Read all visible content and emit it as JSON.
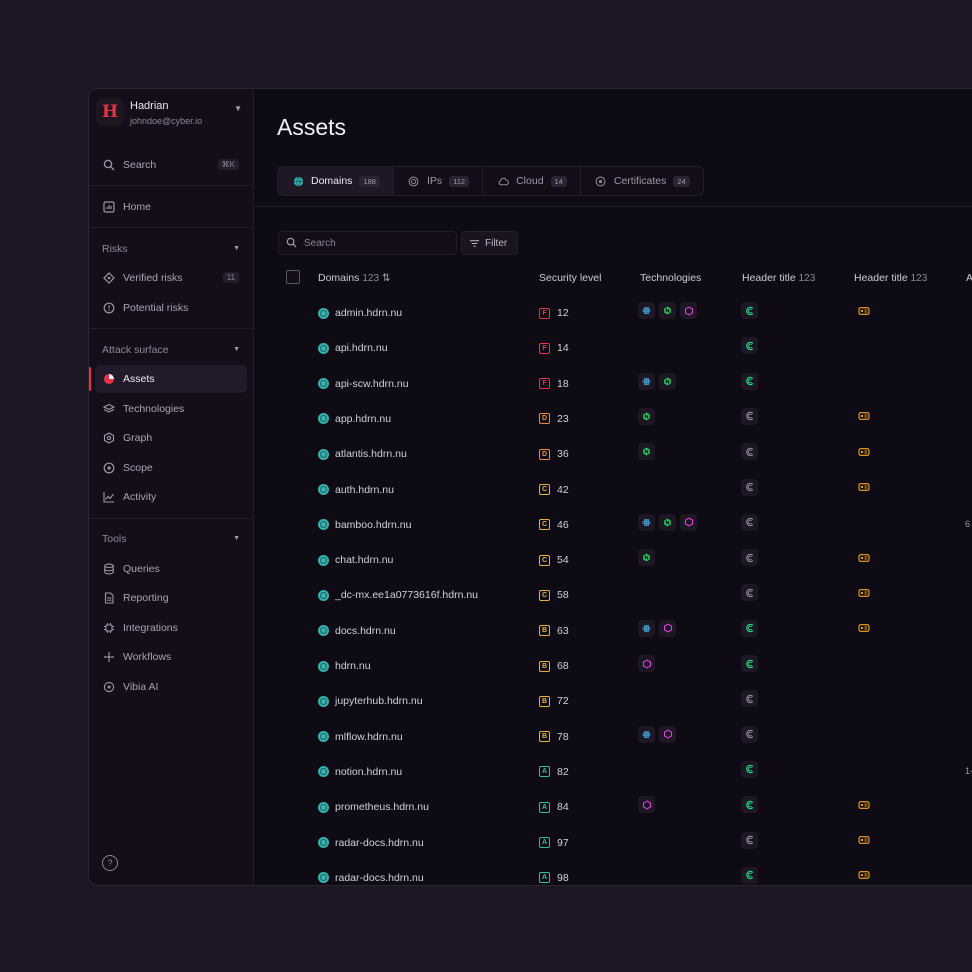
{
  "profile": {
    "name": "Hadrian",
    "email": "johndoe@cyber.io",
    "logo": "H"
  },
  "sidebar": {
    "search_label": "Search",
    "search_shortcut": "⌘K",
    "home": "Home",
    "risks_section": "Risks",
    "verified_risks": "Verified risks",
    "verified_count": "11",
    "potential_risks": "Potential risks",
    "attack_section": "Attack surface",
    "assets": "Assets",
    "technologies": "Technologies",
    "graph": "Graph",
    "scope": "Scope",
    "activity": "Activity",
    "tools_section": "Tools",
    "queries": "Queries",
    "reporting": "Reporting",
    "integrations": "Integrations",
    "workflows": "Workflows",
    "vibia": "Vibia AI",
    "help": "?"
  },
  "page": {
    "title": "Assets"
  },
  "tabs": [
    {
      "label": "Domains",
      "count": "188"
    },
    {
      "label": "IPs",
      "count": "112"
    },
    {
      "label": "Cloud",
      "count": "14"
    },
    {
      "label": "Certificates",
      "count": "24"
    }
  ],
  "toolbar": {
    "search_placeholder": "Search",
    "filter_label": "Filter"
  },
  "table": {
    "headers": {
      "domains": "Domains",
      "domains_count": "123",
      "security": "Security level",
      "technologies": "Technologies",
      "header1": "Header title",
      "header1_count": "123",
      "header2": "Header title",
      "header2_count": "123",
      "extra": "A"
    },
    "rows": [
      {
        "domain": "admin.hdrn.nu",
        "grade": "F",
        "score": "12",
        "tech": [
          "react",
          "nginx",
          "hex"
        ],
        "h1": "on",
        "h2": true,
        "extra": ""
      },
      {
        "domain": "api.hdrn.nu",
        "grade": "F",
        "score": "14",
        "tech": [],
        "h1": "on",
        "h2": false,
        "extra": ""
      },
      {
        "domain": "api-scw.hdrn.nu",
        "grade": "F",
        "score": "18",
        "tech": [
          "react",
          "nginx"
        ],
        "h1": "on",
        "h2": false,
        "extra": ""
      },
      {
        "domain": "app.hdrn.nu",
        "grade": "D",
        "score": "23",
        "tech": [
          "nginx"
        ],
        "h1": "off",
        "h2": true,
        "extra": ""
      },
      {
        "domain": "atlantis.hdrn.nu",
        "grade": "D",
        "score": "36",
        "tech": [
          "nginx"
        ],
        "h1": "off",
        "h2": true,
        "extra": ""
      },
      {
        "domain": "auth.hdrn.nu",
        "grade": "C",
        "score": "42",
        "tech": [],
        "h1": "off",
        "h2": true,
        "extra": ""
      },
      {
        "domain": "bamboo.hdrn.nu",
        "grade": "C",
        "score": "46",
        "tech": [
          "react",
          "nginx",
          "hex"
        ],
        "h1": "off",
        "h2": false,
        "extra": "6"
      },
      {
        "domain": "chat.hdrn.nu",
        "grade": "C",
        "score": "54",
        "tech": [
          "nginx"
        ],
        "h1": "off",
        "h2": true,
        "extra": ""
      },
      {
        "domain": "_dc-mx.ee1a0773616f.hdrn.nu",
        "grade": "C",
        "score": "58",
        "tech": [],
        "h1": "off",
        "h2": true,
        "extra": ""
      },
      {
        "domain": "docs.hdrn.nu",
        "grade": "B",
        "score": "63",
        "tech": [
          "react",
          "hex"
        ],
        "h1": "on",
        "h2": true,
        "extra": ""
      },
      {
        "domain": "hdrn.nu",
        "grade": "B",
        "score": "68",
        "tech": [
          "hex"
        ],
        "h1": "on",
        "h2": false,
        "extra": ""
      },
      {
        "domain": "jupyterhub.hdrn.nu",
        "grade": "B",
        "score": "72",
        "tech": [],
        "h1": "off",
        "h2": false,
        "extra": ""
      },
      {
        "domain": "mlflow.hdrn.nu",
        "grade": "B",
        "score": "78",
        "tech": [
          "react",
          "hex"
        ],
        "h1": "off",
        "h2": false,
        "extra": ""
      },
      {
        "domain": "notion.hdrn.nu",
        "grade": "A",
        "score": "82",
        "tech": [],
        "h1": "on",
        "h2": false,
        "extra": "1-"
      },
      {
        "domain": "prometheus.hdrn.nu",
        "grade": "A",
        "score": "84",
        "tech": [
          "hex"
        ],
        "h1": "on",
        "h2": true,
        "extra": ""
      },
      {
        "domain": "radar-docs.hdrn.nu",
        "grade": "A",
        "score": "97",
        "tech": [],
        "h1": "off",
        "h2": true,
        "extra": ""
      },
      {
        "domain": "radar-docs.hdrn.nu",
        "grade": "A",
        "score": "98",
        "tech": [],
        "h1": "on",
        "h2": true,
        "extra": ""
      }
    ]
  },
  "colors": {
    "grade_F": "#e8324a",
    "grade_D": "#f08a3c",
    "grade_C": "#e6b23a",
    "grade_B": "#e6b23a",
    "grade_A": "#2fbf9a",
    "react": "#4fb3e8",
    "nginx": "#22c55e",
    "hex": "#e040e0",
    "h1_on": "#1fd48a",
    "h1_off": "#8c8696",
    "h2": "#f5a524"
  }
}
